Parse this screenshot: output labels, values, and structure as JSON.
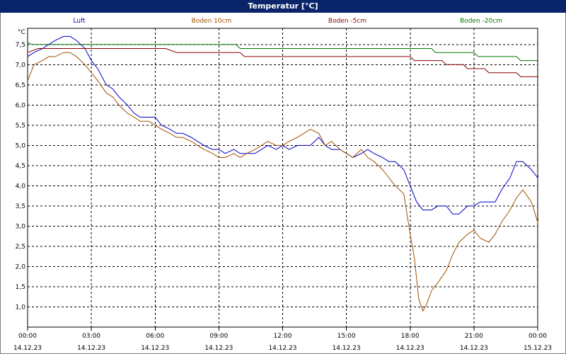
{
  "window": {
    "title": "Temperatur [°C]"
  },
  "chart_data": {
    "type": "line",
    "title": "Temperatur [°C]",
    "ylabel": "°C",
    "xlabel": "",
    "ylim": [
      0.5,
      7.9
    ],
    "yticks": [
      1.0,
      1.5,
      2.0,
      2.5,
      3.0,
      3.5,
      4.0,
      4.5,
      5.0,
      5.5,
      6.0,
      6.5,
      7.0,
      7.5
    ],
    "ytick_labels": [
      "1,0",
      "1,5",
      "2,0",
      "2,5",
      "3,0",
      "3,5",
      "4,0",
      "4,5",
      "5,0",
      "5,5",
      "6,0",
      "6,5",
      "7,0",
      "7,5"
    ],
    "xlim": [
      0,
      24
    ],
    "xticks": [
      0,
      3,
      6,
      9,
      12,
      15,
      18,
      21,
      24
    ],
    "xtick_times": [
      "00:00",
      "03:00",
      "06:00",
      "09:00",
      "12:00",
      "15:00",
      "18:00",
      "21:00",
      "00:00"
    ],
    "xtick_dates": [
      "14.12.23",
      "14.12.23",
      "14.12.23",
      "14.12.23",
      "14.12.23",
      "14.12.23",
      "14.12.23",
      "14.12.23",
      "15.12.23"
    ],
    "grid": true,
    "legend_position": "top",
    "series": [
      {
        "name": "Luft",
        "color": "#0000c8",
        "points": [
          [
            0,
            7.2
          ],
          [
            0.3,
            7.3
          ],
          [
            0.7,
            7.4
          ],
          [
            1.0,
            7.5
          ],
          [
            1.3,
            7.6
          ],
          [
            1.7,
            7.7
          ],
          [
            2.0,
            7.7
          ],
          [
            2.3,
            7.6
          ],
          [
            2.7,
            7.4
          ],
          [
            3.0,
            7.1
          ],
          [
            3.3,
            6.9
          ],
          [
            3.7,
            6.5
          ],
          [
            4.0,
            6.4
          ],
          [
            4.3,
            6.2
          ],
          [
            4.7,
            6.0
          ],
          [
            5.0,
            5.8
          ],
          [
            5.3,
            5.7
          ],
          [
            5.7,
            5.7
          ],
          [
            6.0,
            5.7
          ],
          [
            6.3,
            5.5
          ],
          [
            6.7,
            5.4
          ],
          [
            7.0,
            5.3
          ],
          [
            7.3,
            5.3
          ],
          [
            7.7,
            5.2
          ],
          [
            8.0,
            5.1
          ],
          [
            8.3,
            5.0
          ],
          [
            8.7,
            4.9
          ],
          [
            9.0,
            4.9
          ],
          [
            9.3,
            4.8
          ],
          [
            9.7,
            4.9
          ],
          [
            10.0,
            4.8
          ],
          [
            10.3,
            4.8
          ],
          [
            10.7,
            4.8
          ],
          [
            11.0,
            4.9
          ],
          [
            11.3,
            5.0
          ],
          [
            11.7,
            4.9
          ],
          [
            12.0,
            5.0
          ],
          [
            12.3,
            4.9
          ],
          [
            12.7,
            5.0
          ],
          [
            13.0,
            5.0
          ],
          [
            13.3,
            5.0
          ],
          [
            13.7,
            5.2
          ],
          [
            14.0,
            5.0
          ],
          [
            14.3,
            4.9
          ],
          [
            14.7,
            4.9
          ],
          [
            15.0,
            4.8
          ],
          [
            15.3,
            4.7
          ],
          [
            15.7,
            4.8
          ],
          [
            16.0,
            4.9
          ],
          [
            16.3,
            4.8
          ],
          [
            16.7,
            4.7
          ],
          [
            17.0,
            4.6
          ],
          [
            17.3,
            4.6
          ],
          [
            17.7,
            4.4
          ],
          [
            18.0,
            4.0
          ],
          [
            18.3,
            3.6
          ],
          [
            18.6,
            3.4
          ],
          [
            19.0,
            3.4
          ],
          [
            19.3,
            3.5
          ],
          [
            19.7,
            3.5
          ],
          [
            20.0,
            3.3
          ],
          [
            20.3,
            3.3
          ],
          [
            20.7,
            3.5
          ],
          [
            21.0,
            3.5
          ],
          [
            21.3,
            3.6
          ],
          [
            21.7,
            3.6
          ],
          [
            22.0,
            3.6
          ],
          [
            22.3,
            3.9
          ],
          [
            22.7,
            4.2
          ],
          [
            23.0,
            4.6
          ],
          [
            23.3,
            4.6
          ],
          [
            23.7,
            4.4
          ],
          [
            24.0,
            4.2
          ],
          [
            24.3,
            4.6
          ]
        ]
      },
      {
        "name": "Boden 10cm",
        "color": "#a05000",
        "points": [
          [
            0,
            6.6
          ],
          [
            0.3,
            7.0
          ],
          [
            0.7,
            7.1
          ],
          [
            1.0,
            7.2
          ],
          [
            1.3,
            7.2
          ],
          [
            1.7,
            7.3
          ],
          [
            2.0,
            7.3
          ],
          [
            2.3,
            7.2
          ],
          [
            2.7,
            7.0
          ],
          [
            3.0,
            6.8
          ],
          [
            3.3,
            6.6
          ],
          [
            3.7,
            6.3
          ],
          [
            4.0,
            6.2
          ],
          [
            4.3,
            6.0
          ],
          [
            4.7,
            5.8
          ],
          [
            5.0,
            5.7
          ],
          [
            5.3,
            5.6
          ],
          [
            5.7,
            5.6
          ],
          [
            6.0,
            5.5
          ],
          [
            6.3,
            5.4
          ],
          [
            6.7,
            5.3
          ],
          [
            7.0,
            5.2
          ],
          [
            7.3,
            5.2
          ],
          [
            7.7,
            5.1
          ],
          [
            8.0,
            5.0
          ],
          [
            8.3,
            4.9
          ],
          [
            8.7,
            4.8
          ],
          [
            9.0,
            4.7
          ],
          [
            9.3,
            4.7
          ],
          [
            9.7,
            4.8
          ],
          [
            10.0,
            4.7
          ],
          [
            10.3,
            4.8
          ],
          [
            10.7,
            4.9
          ],
          [
            11.0,
            5.0
          ],
          [
            11.3,
            5.1
          ],
          [
            11.7,
            5.0
          ],
          [
            12.0,
            5.0
          ],
          [
            12.3,
            5.1
          ],
          [
            12.7,
            5.2
          ],
          [
            13.0,
            5.3
          ],
          [
            13.3,
            5.4
          ],
          [
            13.7,
            5.3
          ],
          [
            14.0,
            5.0
          ],
          [
            14.3,
            5.1
          ],
          [
            14.7,
            4.9
          ],
          [
            15.0,
            4.8
          ],
          [
            15.3,
            4.7
          ],
          [
            15.7,
            4.9
          ],
          [
            16.0,
            4.7
          ],
          [
            16.3,
            4.6
          ],
          [
            16.7,
            4.4
          ],
          [
            17.0,
            4.2
          ],
          [
            17.3,
            4.0
          ],
          [
            17.7,
            3.8
          ],
          [
            18.0,
            2.8
          ],
          [
            18.2,
            2.2
          ],
          [
            18.4,
            1.2
          ],
          [
            18.6,
            0.9
          ],
          [
            18.8,
            1.1
          ],
          [
            19.0,
            1.4
          ],
          [
            19.3,
            1.6
          ],
          [
            19.7,
            1.9
          ],
          [
            20.0,
            2.3
          ],
          [
            20.3,
            2.6
          ],
          [
            20.7,
            2.8
          ],
          [
            21.0,
            2.9
          ],
          [
            21.3,
            2.7
          ],
          [
            21.7,
            2.6
          ],
          [
            22.0,
            2.8
          ],
          [
            22.3,
            3.1
          ],
          [
            22.7,
            3.4
          ],
          [
            23.0,
            3.7
          ],
          [
            23.3,
            3.9
          ],
          [
            23.7,
            3.6
          ],
          [
            24.0,
            3.1
          ],
          [
            24.3,
            3.8
          ]
        ]
      },
      {
        "name": "Boden -5cm",
        "color": "#8b0000",
        "points": [
          [
            0,
            7.3
          ],
          [
            0.5,
            7.4
          ],
          [
            6.5,
            7.4
          ],
          [
            7.0,
            7.3
          ],
          [
            10.0,
            7.3
          ],
          [
            10.2,
            7.2
          ],
          [
            18.0,
            7.2
          ],
          [
            18.2,
            7.1
          ],
          [
            19.5,
            7.1
          ],
          [
            19.7,
            7.0
          ],
          [
            20.5,
            7.0
          ],
          [
            20.7,
            6.9
          ],
          [
            21.5,
            6.9
          ],
          [
            21.7,
            6.8
          ],
          [
            23.0,
            6.8
          ],
          [
            23.2,
            6.7
          ],
          [
            24.3,
            6.7
          ]
        ]
      },
      {
        "name": "Boden -20cm",
        "color": "#007800",
        "points": [
          [
            0,
            7.55
          ],
          [
            0.2,
            7.5
          ],
          [
            9.8,
            7.5
          ],
          [
            10.0,
            7.4
          ],
          [
            19.0,
            7.4
          ],
          [
            19.2,
            7.3
          ],
          [
            21.0,
            7.3
          ],
          [
            21.2,
            7.2
          ],
          [
            23.0,
            7.2
          ],
          [
            23.2,
            7.1
          ],
          [
            24.3,
            7.1
          ]
        ]
      }
    ]
  }
}
